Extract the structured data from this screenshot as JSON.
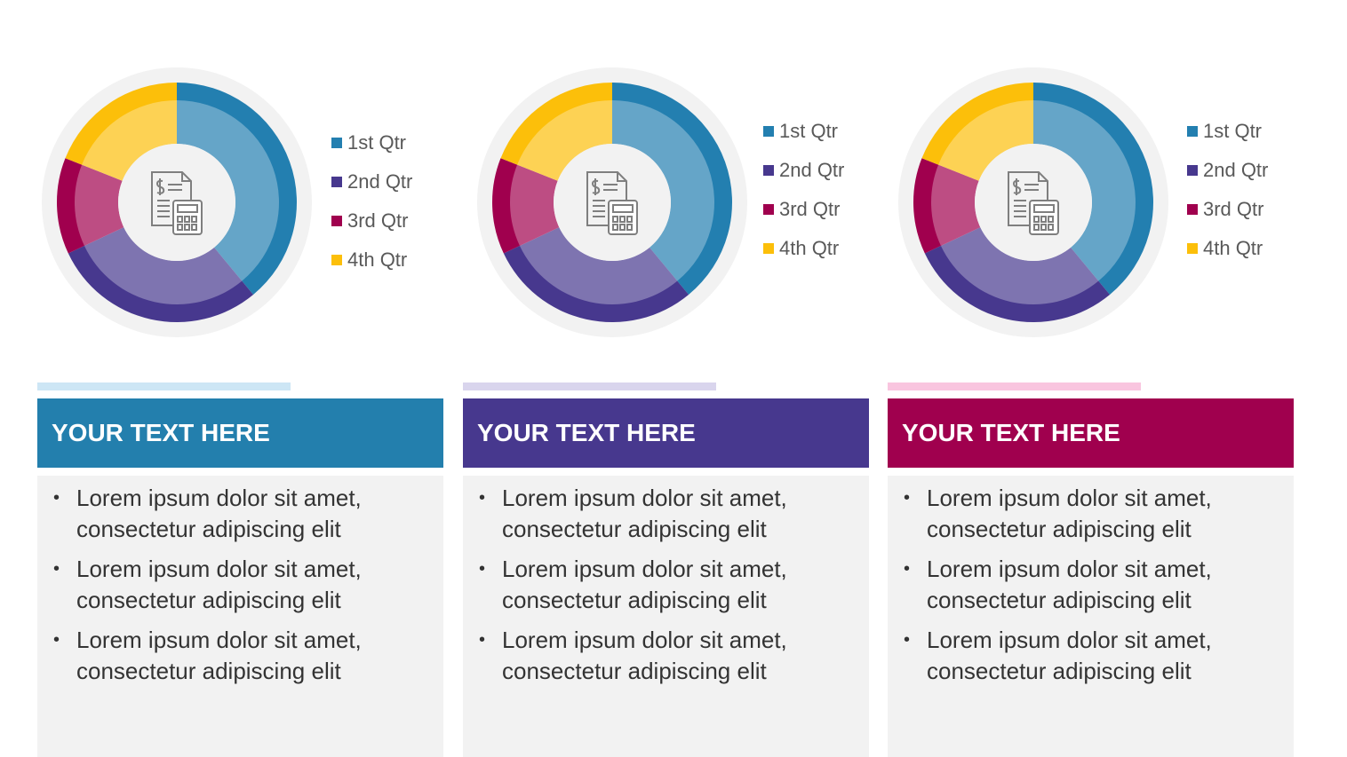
{
  "chart_data": [
    {
      "type": "pie",
      "categories": [
        "1st Qtr",
        "2nd Qtr",
        "3rd Qtr",
        "4th Qtr"
      ],
      "values": [
        39,
        29,
        13,
        19
      ],
      "colors": [
        "#237fb0",
        "#47388e",
        "#a0004e",
        "#fcbf0a"
      ],
      "legend": "right"
    },
    {
      "type": "pie",
      "categories": [
        "1st Qtr",
        "2nd Qtr",
        "3rd Qtr",
        "4th Qtr"
      ],
      "values": [
        39,
        29,
        13,
        19
      ],
      "colors": [
        "#237fb0",
        "#47388e",
        "#a0004e",
        "#fcbf0a"
      ],
      "legend": "right"
    },
    {
      "type": "pie",
      "categories": [
        "1st Qtr",
        "2nd Qtr",
        "3rd Qtr",
        "4th Qtr"
      ],
      "values": [
        39,
        29,
        13,
        19
      ],
      "colors": [
        "#237fb0",
        "#47388e",
        "#a0004e",
        "#fcbf0a"
      ],
      "legend": "right"
    }
  ],
  "panels": [
    {
      "heading": "YOUR TEXT HERE",
      "bullets": [
        "Lorem ipsum dolor sit amet, consectetur adipiscing elit",
        "Lorem ipsum dolor sit amet, consectetur adipiscing elit",
        "Lorem ipsum dolor sit amet, consectetur adipiscing elit"
      ]
    },
    {
      "heading": "YOUR TEXT HERE",
      "bullets": [
        "Lorem ipsum dolor sit amet, consectetur adipiscing elit",
        "Lorem ipsum dolor sit amet, consectetur adipiscing elit",
        "Lorem ipsum dolor sit amet, consectetur adipiscing elit"
      ]
    },
    {
      "heading": "YOUR TEXT HERE",
      "bullets": [
        "Lorem ipsum dolor sit amet, consectetur adipiscing elit",
        "Lorem ipsum dolor sit amet, consectetur adipiscing elit",
        "Lorem ipsum dolor sit amet, consectetur adipiscing elit"
      ]
    }
  ]
}
